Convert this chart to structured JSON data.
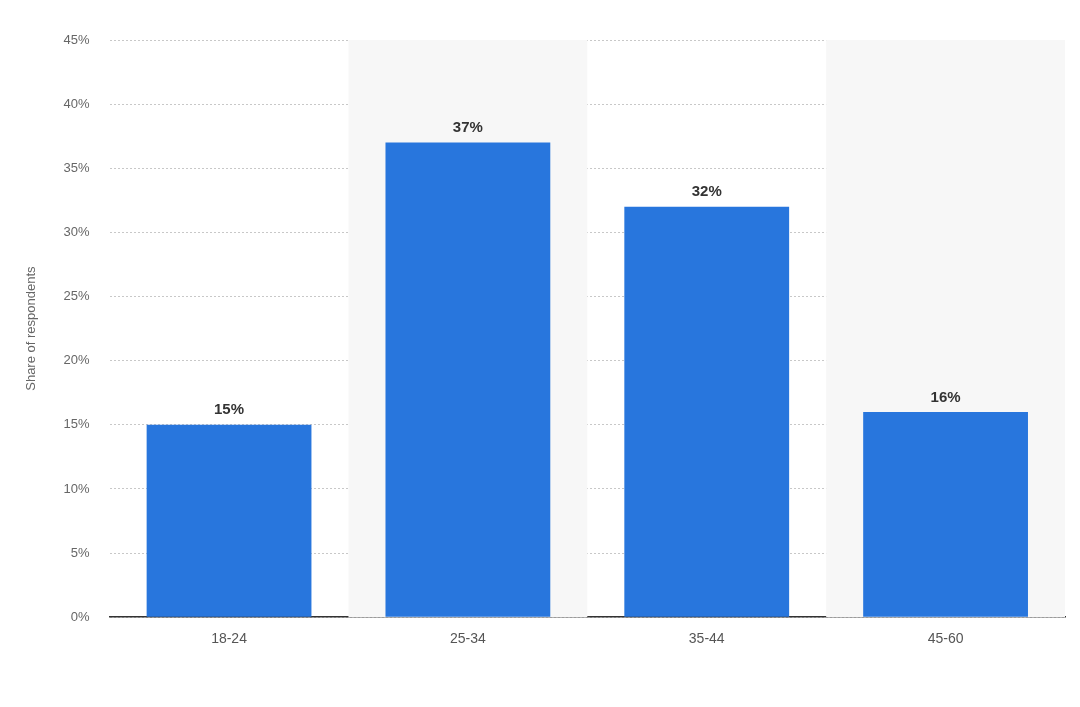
{
  "chart_data": {
    "type": "bar",
    "ylabel": "Share of respondents",
    "categories": [
      "18-24",
      "25-34",
      "35-44",
      "45-60"
    ],
    "values": [
      15,
      37,
      32,
      16
    ],
    "color": "#2876dd",
    "value_labels": [
      "15%",
      "37%",
      "32%",
      "16%"
    ],
    "ylim": [
      0,
      45
    ],
    "yticks": [
      {
        "value": 0,
        "label": "0%"
      },
      {
        "value": 5,
        "label": "5%"
      },
      {
        "value": 10,
        "label": "10%"
      },
      {
        "value": 15,
        "label": "15%"
      },
      {
        "value": 20,
        "label": "20%"
      },
      {
        "value": 25,
        "label": "25%"
      },
      {
        "value": 30,
        "label": "30%"
      },
      {
        "value": 35,
        "label": "35%"
      },
      {
        "value": 40,
        "label": "40%"
      },
      {
        "value": 45,
        "label": "45%"
      }
    ],
    "grid": "y",
    "legend": false,
    "bands": [
      {
        "axis": "x",
        "from": "25-34",
        "to": "25-34",
        "color": "#f7f7f7"
      },
      {
        "axis": "x",
        "from": "45-60",
        "to": "45-60",
        "color": "#f7f7f7"
      }
    ]
  }
}
